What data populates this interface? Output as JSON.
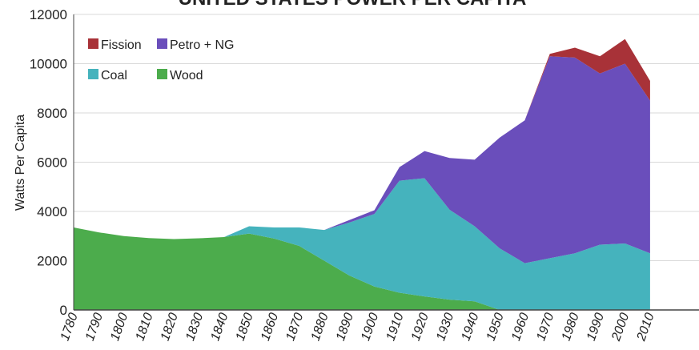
{
  "chart_data": {
    "type": "area",
    "stacked": true,
    "title": "UNITED STATES POWER PER CAPITA",
    "xlabel": "",
    "ylabel": "Watts Per Capita",
    "xlim": [
      1780,
      2010
    ],
    "ylim": [
      0,
      12000
    ],
    "yticks": [
      0,
      2000,
      4000,
      6000,
      8000,
      10000,
      12000
    ],
    "x_tick_labels": [
      "1780",
      "1790",
      "1800",
      "1810",
      "1820",
      "1830",
      "1840",
      "1850",
      "1860",
      "1870",
      "1880",
      "1890",
      "1900",
      "1910",
      "1920",
      "1930",
      "1940",
      "1950",
      "1960",
      "1970",
      "1980",
      "1990",
      "2000",
      "2010"
    ],
    "grid": "horizontal",
    "legend_position": "top-left",
    "x": [
      1780,
      1790,
      1800,
      1810,
      1820,
      1830,
      1840,
      1850,
      1860,
      1870,
      1880,
      1890,
      1900,
      1910,
      1920,
      1930,
      1940,
      1950,
      1960,
      1970,
      1980,
      1990,
      2000,
      2010
    ],
    "series": [
      {
        "name": "Wood",
        "color": "#4cac4c",
        "values": [
          3350,
          3150,
          3000,
          2920,
          2880,
          2910,
          2960,
          3100,
          2900,
          2600,
          2000,
          1400,
          950,
          700,
          550,
          420,
          350,
          0,
          0,
          0,
          0,
          0,
          0,
          0
        ]
      },
      {
        "name": "Coal",
        "color": "#45b3bd",
        "values": [
          0,
          0,
          0,
          0,
          0,
          0,
          0,
          300,
          450,
          750,
          1250,
          2150,
          2950,
          4550,
          4800,
          3650,
          3050,
          2500,
          1900,
          2100,
          2300,
          2650,
          2700,
          2300
        ]
      },
      {
        "name": "Petro + NG",
        "color": "#6a4ebb",
        "values": [
          0,
          0,
          0,
          0,
          0,
          0,
          0,
          0,
          0,
          0,
          0,
          100,
          150,
          550,
          1100,
          2100,
          2700,
          4500,
          5800,
          8200,
          7950,
          6950,
          7300,
          6200
        ]
      },
      {
        "name": "Fission",
        "color": "#a83238",
        "values": [
          0,
          0,
          0,
          0,
          0,
          0,
          0,
          0,
          0,
          0,
          0,
          0,
          0,
          0,
          0,
          0,
          0,
          0,
          0,
          100,
          400,
          700,
          1000,
          800
        ]
      }
    ],
    "legend_order": [
      "Fission",
      "Petro + NG",
      "Coal",
      "Wood"
    ]
  }
}
